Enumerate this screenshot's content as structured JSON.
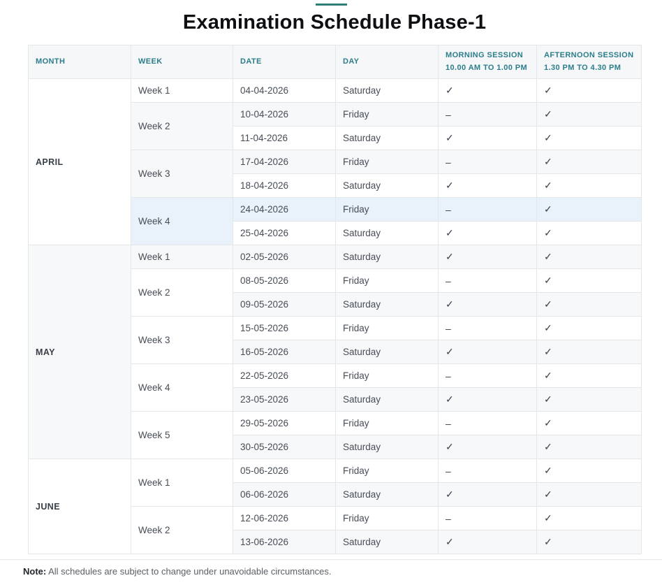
{
  "title": "Examination Schedule Phase-1",
  "colors": {
    "accent": "#2f7d75",
    "header_text": "#2c7d8c",
    "header_bg": "#f5f7f8",
    "stripe": "#f7f8f9",
    "highlight": "#e9f1fb",
    "border": "#e4e7ea"
  },
  "columns": [
    {
      "line1": "MONTH",
      "line2": ""
    },
    {
      "line1": "WEEK",
      "line2": ""
    },
    {
      "line1": "DATE",
      "line2": ""
    },
    {
      "line1": "DAY",
      "line2": ""
    },
    {
      "line1": "MORNING SESSION",
      "line2": "10.00 AM TO 1.00 PM"
    },
    {
      "line1": "AFTERNOON SESSION",
      "line2": "1.30 PM TO 4.30 PM"
    }
  ],
  "symbols": {
    "scheduled": "✓",
    "not_scheduled": "–"
  },
  "months": [
    {
      "name": "APRIL",
      "weeks": [
        {
          "label": "Week 1",
          "days": [
            {
              "date": "04-04-2026",
              "day": "Saturday",
              "morning": "✓",
              "afternoon": "✓"
            }
          ]
        },
        {
          "label": "Week 2",
          "days": [
            {
              "date": "10-04-2026",
              "day": "Friday",
              "morning": "–",
              "afternoon": "✓"
            },
            {
              "date": "11-04-2026",
              "day": "Saturday",
              "morning": "✓",
              "afternoon": "✓"
            }
          ]
        },
        {
          "label": "Week 3",
          "days": [
            {
              "date": "17-04-2026",
              "day": "Friday",
              "morning": "–",
              "afternoon": "✓"
            },
            {
              "date": "18-04-2026",
              "day": "Saturday",
              "morning": "✓",
              "afternoon": "✓"
            }
          ]
        },
        {
          "label": "Week 4",
          "highlighted": true,
          "days": [
            {
              "date": "24-04-2026",
              "day": "Friday",
              "morning": "–",
              "afternoon": "✓",
              "highlighted": true
            },
            {
              "date": "25-04-2026",
              "day": "Saturday",
              "morning": "✓",
              "afternoon": "✓"
            }
          ]
        }
      ]
    },
    {
      "name": "MAY",
      "weeks": [
        {
          "label": "Week 1",
          "days": [
            {
              "date": "02-05-2026",
              "day": "Saturday",
              "morning": "✓",
              "afternoon": "✓"
            }
          ]
        },
        {
          "label": "Week 2",
          "days": [
            {
              "date": "08-05-2026",
              "day": "Friday",
              "morning": "–",
              "afternoon": "✓"
            },
            {
              "date": "09-05-2026",
              "day": "Saturday",
              "morning": "✓",
              "afternoon": "✓"
            }
          ]
        },
        {
          "label": "Week 3",
          "days": [
            {
              "date": "15-05-2026",
              "day": "Friday",
              "morning": "–",
              "afternoon": "✓"
            },
            {
              "date": "16-05-2026",
              "day": "Saturday",
              "morning": "✓",
              "afternoon": "✓"
            }
          ]
        },
        {
          "label": "Week 4",
          "days": [
            {
              "date": "22-05-2026",
              "day": "Friday",
              "morning": "–",
              "afternoon": "✓"
            },
            {
              "date": "23-05-2026",
              "day": "Saturday",
              "morning": "✓",
              "afternoon": "✓"
            }
          ]
        },
        {
          "label": "Week 5",
          "days": [
            {
              "date": "29-05-2026",
              "day": "Friday",
              "morning": "–",
              "afternoon": "✓"
            },
            {
              "date": "30-05-2026",
              "day": "Saturday",
              "morning": "✓",
              "afternoon": "✓"
            }
          ]
        }
      ]
    },
    {
      "name": "JUNE",
      "weeks": [
        {
          "label": "Week 1",
          "days": [
            {
              "date": "05-06-2026",
              "day": "Friday",
              "morning": "–",
              "afternoon": "✓"
            },
            {
              "date": "06-06-2026",
              "day": "Saturday",
              "morning": "✓",
              "afternoon": "✓"
            }
          ]
        },
        {
          "label": "Week 2",
          "days": [
            {
              "date": "12-06-2026",
              "day": "Friday",
              "morning": "–",
              "afternoon": "✓"
            },
            {
              "date": "13-06-2026",
              "day": "Saturday",
              "morning": "✓",
              "afternoon": "✓"
            }
          ]
        }
      ]
    }
  ],
  "note": {
    "label": "Note:",
    "text": " All schedules are subject to change under unavoidable circumstances."
  }
}
